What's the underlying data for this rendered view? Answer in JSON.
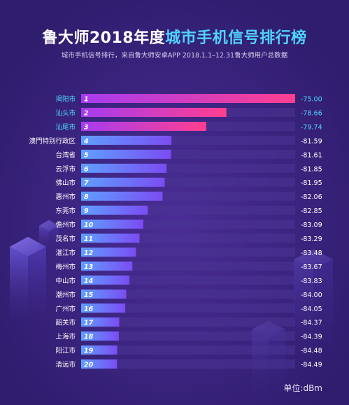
{
  "header": {
    "title_part1": "鲁大师2018年度",
    "title_part2": "城市手机信号排行榜",
    "subtitle": "城市手机信号排行，来自鲁大师安卓APP 2018.1.1–12.31鲁大师用户总数据"
  },
  "unit_label": "单位:dBm",
  "colors": {
    "background": "#3a2480",
    "highlight_label": "#4fd3ff",
    "top3_bar_start": "#a63cf0",
    "top3_bar_end": "#ff3f8f",
    "bar_start": "#5fa0ff",
    "bar_end": "#7b4cf2",
    "track": "#4a3493"
  },
  "chart_data": {
    "type": "bar",
    "orientation": "horizontal",
    "categories": [
      "揭阳市",
      "汕头市",
      "汕尾市",
      "澳門特别行政区",
      "台湾省",
      "云浮市",
      "佛山市",
      "惠州市",
      "东莞市",
      "儋州市",
      "茂名市",
      "湛江市",
      "梅州市",
      "中山市",
      "潮州市",
      "广州市",
      "韶关市",
      "上海市",
      "阳江市",
      "清远市"
    ],
    "ranks": [
      "1",
      "2",
      "3",
      "4",
      "5",
      "6",
      "7",
      "8",
      "9",
      "10",
      "11",
      "12",
      "13",
      "14",
      "15",
      "16",
      "17",
      "18",
      "19",
      "20"
    ],
    "values": [
      -75.0,
      -78.66,
      -79.74,
      -81.59,
      -81.61,
      -81.85,
      -81.95,
      -82.06,
      -82.85,
      -83.09,
      -83.29,
      -83.48,
      -83.67,
      -83.83,
      -84.0,
      -84.05,
      -84.37,
      -84.39,
      -84.48,
      -84.49
    ],
    "value_labels": [
      "-75.00",
      "-78.66",
      "-79.74",
      "-81.59",
      "-81.61",
      "-81.85",
      "-81.95",
      "-82.06",
      "-82.85",
      "-83.09",
      "-83.29",
      "-83.48",
      "-83.67",
      "-83.83",
      "-84.00",
      "-84.05",
      "-84.37",
      "-84.39",
      "-84.48",
      "-84.49"
    ],
    "highlight_count": 3,
    "legend": "none",
    "grid": false
  }
}
